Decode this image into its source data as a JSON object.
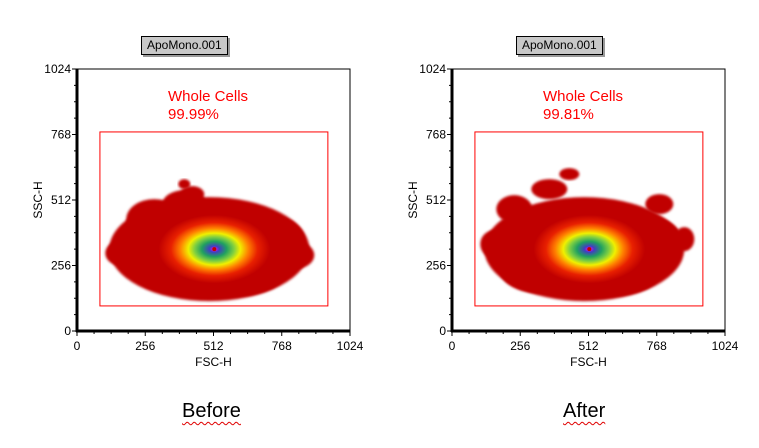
{
  "chart_data": [
    {
      "type": "heatmap",
      "title": "ApoMono.001",
      "xlabel": "FSC-H",
      "ylabel": "SSC-H",
      "xlim": [
        0,
        1024
      ],
      "ylim": [
        0,
        1024
      ],
      "xticks": [
        "0",
        "256",
        "512",
        "768",
        "1024"
      ],
      "yticks": [
        "0",
        "256",
        "512",
        "768",
        "1024"
      ],
      "density_peak": {
        "x": 515,
        "y": 320
      },
      "gate": {
        "name": "Whole Cells",
        "percent": "99.99%",
        "x_range": [
          86,
          941
        ],
        "y_range": [
          98,
          778
        ],
        "color": "#ff0000"
      },
      "caption": "Before"
    },
    {
      "type": "heatmap",
      "title": "ApoMono.001",
      "xlabel": "FSC-H",
      "ylabel": "SSC-H",
      "xlim": [
        0,
        1024
      ],
      "ylim": [
        0,
        1024
      ],
      "xticks": [
        "0",
        "256",
        "512",
        "768",
        "1024"
      ],
      "yticks": [
        "0",
        "256",
        "512",
        "768",
        "1024"
      ],
      "density_peak": {
        "x": 515,
        "y": 320
      },
      "gate": {
        "name": "Whole Cells",
        "percent": "99.81%",
        "x_range": [
          86,
          941
        ],
        "y_range": [
          98,
          778
        ],
        "color": "#ff0000"
      },
      "caption": "After"
    }
  ],
  "colorscale": [
    "#c00000",
    "#e82000",
    "#ff8000",
    "#f0f000",
    "#80d040",
    "#20a060",
    "#4040c0",
    "#ff00ff"
  ]
}
